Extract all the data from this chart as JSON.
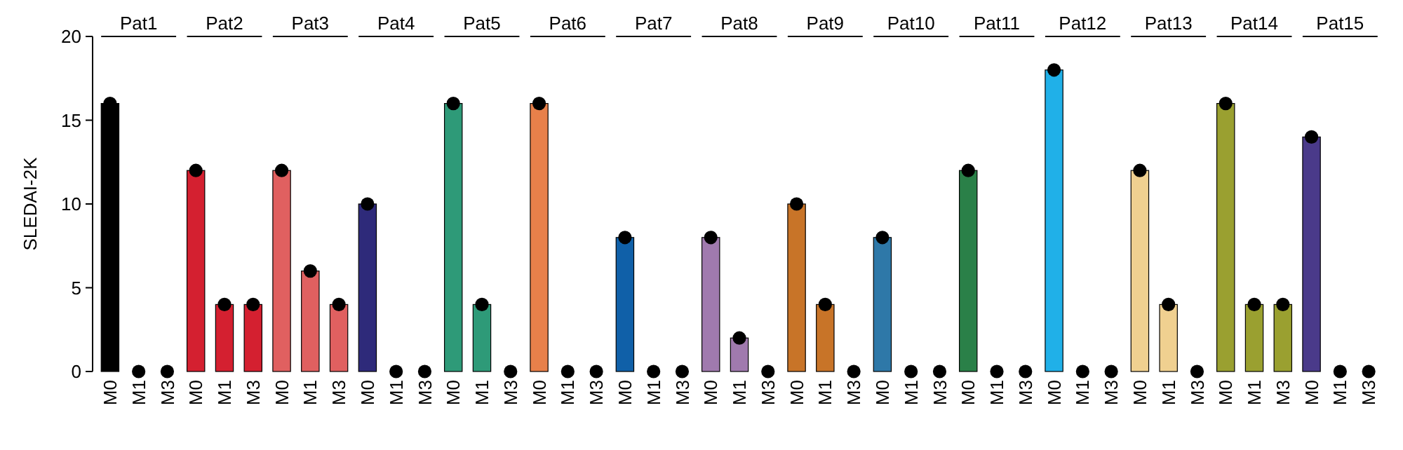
{
  "chart_data": {
    "type": "bar",
    "ylabel": "SLEDAI-2K",
    "categories": [
      "M0",
      "M1",
      "M3",
      "M0",
      "M1",
      "M3",
      "M0",
      "M1",
      "M3",
      "M0",
      "M1",
      "M3",
      "M0",
      "M1",
      "M3",
      "M0",
      "M1",
      "M3",
      "M0",
      "M1",
      "M3",
      "M0",
      "M1",
      "M3",
      "M0",
      "M1",
      "M3",
      "M0",
      "M1",
      "M3",
      "M0",
      "M1",
      "M3",
      "M0",
      "M1",
      "M3",
      "M0",
      "M1",
      "M3",
      "M0",
      "M1",
      "M3",
      "M0",
      "M1",
      "M3"
    ],
    "series": [
      {
        "values": [
          16,
          0,
          0,
          12,
          4,
          4,
          12,
          6,
          4,
          10,
          0,
          0,
          16,
          4,
          0,
          16,
          0,
          0,
          8,
          0,
          0,
          8,
          2,
          0,
          10,
          4,
          0,
          8,
          0,
          0,
          12,
          0,
          0,
          18,
          0,
          0,
          12,
          4,
          0,
          16,
          4,
          4,
          14,
          0,
          0
        ],
        "colors": [
          "#000000",
          "#000000",
          "#000000",
          "#d42030",
          "#d42030",
          "#d42030",
          "#e06060",
          "#e06060",
          "#e06060",
          "#2e2a7a",
          "#2e2a7a",
          "#2e2a7a",
          "#2e9a78",
          "#2e9a78",
          "#2e9a78",
          "#e8804a",
          "#e8804a",
          "#e8804a",
          "#1060a8",
          "#1060a8",
          "#1060a8",
          "#a07aae",
          "#a07aae",
          "#a07aae",
          "#c87428",
          "#c87428",
          "#c87428",
          "#2e78a8",
          "#2e78a8",
          "#2e78a8",
          "#2a8048",
          "#2a8048",
          "#2a8048",
          "#20b0e8",
          "#20b0e8",
          "#20b0e8",
          "#f0d090",
          "#f0d090",
          "#f0d090",
          "#9aa030",
          "#9aa030",
          "#9aa030",
          "#4a3a8a",
          "#4a3a8a",
          "#4a3a8a"
        ]
      },
      {
        "type": "scatter",
        "color": "#000000",
        "marker": "circle",
        "values": [
          16,
          0,
          0,
          12,
          4,
          4,
          12,
          6,
          4,
          10,
          0,
          0,
          16,
          4,
          0,
          16,
          0,
          0,
          8,
          0,
          0,
          8,
          2,
          0,
          10,
          4,
          0,
          8,
          0,
          0,
          12,
          0,
          0,
          18,
          0,
          0,
          12,
          4,
          0,
          16,
          4,
          4,
          14,
          0,
          0
        ]
      }
    ],
    "annotations": [
      "Pat1",
      "Pat2",
      "Pat3",
      "Pat4",
      "Pat5",
      "Pat6",
      "Pat7",
      "Pat8",
      "Pat9",
      "Pat10",
      "Pat11",
      "Pat12",
      "Pat13",
      "Pat14",
      "Pat15"
    ],
    "ylim": [
      0,
      20
    ],
    "yticks": [
      0,
      5,
      10,
      15,
      20
    ],
    "grid": false
  }
}
